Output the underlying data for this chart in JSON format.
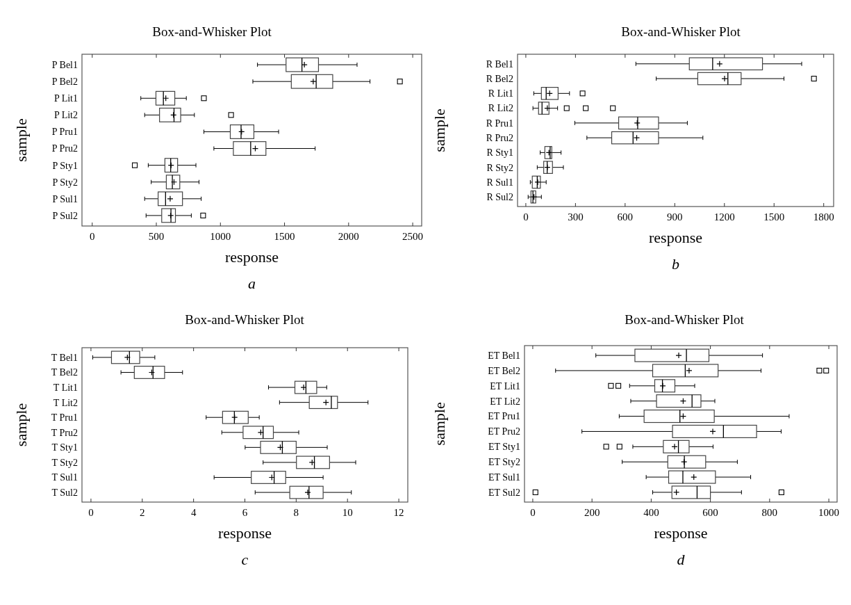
{
  "chart_data": [
    {
      "type": "box",
      "orientation": "horizontal",
      "title": "Box-and-Whisker Plot",
      "xlabel": "response",
      "ylabel": "sample",
      "annotations": [
        "a"
      ],
      "grid": false,
      "xlim": [
        -80,
        2570
      ],
      "xticks": [
        0,
        500,
        1000,
        1500,
        2000,
        2500
      ],
      "categories": [
        "P Bel1",
        "P Bel2",
        "P Lit1",
        "P Lit2",
        "P Pru1",
        "P Pru2",
        "P Sty1",
        "P Sty2",
        "P Sul1",
        "P Sul2"
      ],
      "boxes": [
        {
          "low": 1289,
          "q1": 1512,
          "median": 1636,
          "q3": 1765,
          "high": 2066,
          "mean": 1655
        },
        {
          "low": 1253,
          "q1": 1553,
          "median": 1747,
          "q3": 1876,
          "high": 2167,
          "mean": 1724,
          "outliers": [
            2400
          ]
        },
        {
          "low": 379,
          "q1": 497,
          "median": 555,
          "q3": 644,
          "high": 734,
          "mean": 574,
          "outliers": [
            871
          ]
        },
        {
          "low": 409,
          "q1": 525,
          "median": 638,
          "q3": 690,
          "high": 797,
          "mean": 634,
          "outliers": [
            1083
          ]
        },
        {
          "low": 871,
          "q1": 1077,
          "median": 1161,
          "q3": 1261,
          "high": 1454,
          "mean": 1165
        },
        {
          "low": 949,
          "q1": 1101,
          "median": 1236,
          "q3": 1355,
          "high": 1739,
          "mean": 1272
        },
        {
          "low": 437,
          "q1": 567,
          "median": 612,
          "q3": 666,
          "high": 809,
          "mean": 615,
          "outliers": [
            332
          ]
        },
        {
          "low": 460,
          "q1": 578,
          "median": 625,
          "q3": 683,
          "high": 833,
          "mean": 638
        },
        {
          "low": 409,
          "q1": 514,
          "median": 572,
          "q3": 704,
          "high": 850,
          "mean": 608
        },
        {
          "low": 420,
          "q1": 542,
          "median": 614,
          "q3": 649,
          "high": 773,
          "mean": 612,
          "outliers": [
            865
          ]
        }
      ]
    },
    {
      "type": "box",
      "orientation": "horizontal",
      "title": "Box-and-Whisker Plot",
      "xlabel": "response",
      "ylabel": "sample",
      "annotations": [
        "b"
      ],
      "grid": false,
      "xlim": [
        -50,
        1860
      ],
      "xticks": [
        0,
        300,
        600,
        900,
        1200,
        1500,
        1800
      ],
      "categories": [
        "R Bel1",
        "R Bel2",
        "R Lit1",
        "R Lit2",
        "R Pru1",
        "R Pru2",
        "R Sty1",
        "R Sty2",
        "R Sul1",
        "R Sul2"
      ],
      "boxes": [
        {
          "low": 665,
          "q1": 988,
          "median": 1129,
          "q3": 1430,
          "high": 1667,
          "mean": 1171
        },
        {
          "low": 788,
          "q1": 1039,
          "median": 1221,
          "q3": 1301,
          "high": 1560,
          "mean": 1201,
          "outliers": [
            1741
          ]
        },
        {
          "low": 48,
          "q1": 94,
          "median": 123,
          "q3": 195,
          "high": 264,
          "mean": 144,
          "outliers": [
            343
          ]
        },
        {
          "low": 43,
          "q1": 77,
          "median": 98,
          "q3": 140,
          "high": 192,
          "mean": 130,
          "outliers": [
            247,
            362,
            526
          ]
        },
        {
          "low": 296,
          "q1": 561,
          "median": 676,
          "q3": 802,
          "high": 976,
          "mean": 673
        },
        {
          "low": 369,
          "q1": 519,
          "median": 648,
          "q3": 802,
          "high": 1070,
          "mean": 670
        },
        {
          "low": 87,
          "q1": 115,
          "median": 147,
          "q3": 157,
          "high": 213,
          "mean": 140
        },
        {
          "low": 69,
          "q1": 108,
          "median": 129,
          "q3": 161,
          "high": 227,
          "mean": 130
        },
        {
          "low": 27,
          "q1": 39,
          "median": 69,
          "q3": 88,
          "high": 123,
          "mean": 72
        },
        {
          "low": 14,
          "q1": 31,
          "median": 43,
          "q3": 60,
          "high": 94,
          "mean": 49
        }
      ]
    },
    {
      "type": "box",
      "orientation": "horizontal",
      "title": "Box-and-Whisker Plot",
      "xlabel": "response",
      "ylabel": "sample",
      "annotations": [
        "c"
      ],
      "grid": false,
      "xlim": [
        -0.35,
        12.35
      ],
      "xticks": [
        0,
        2,
        4,
        6,
        8,
        10,
        12
      ],
      "categories": [
        "T Bel1",
        "T Bel2",
        "T Lit1",
        "T Lit2",
        "T Pru1",
        "T Pru2",
        "T Sty1",
        "T Sty2",
        "T Sul1",
        "T Sul2"
      ],
      "boxes": [
        {
          "low": 0.07,
          "q1": 0.8,
          "median": 1.5,
          "q3": 1.9,
          "high": 2.49,
          "mean": 1.42
        },
        {
          "low": 1.17,
          "q1": 1.69,
          "median": 2.42,
          "q3": 2.87,
          "high": 3.57,
          "mean": 2.37
        },
        {
          "low": 6.92,
          "q1": 7.95,
          "median": 8.38,
          "q3": 8.8,
          "high": 9.19,
          "mean": 8.29
        },
        {
          "low": 7.35,
          "q1": 8.51,
          "median": 9.37,
          "q3": 9.61,
          "high": 10.8,
          "mean": 9.16
        },
        {
          "low": 4.49,
          "q1": 5.13,
          "median": 5.59,
          "q3": 6.13,
          "high": 6.56,
          "mean": 5.6
        },
        {
          "low": 5.1,
          "q1": 5.93,
          "median": 6.71,
          "q3": 7.11,
          "high": 8.1,
          "mean": 6.62
        },
        {
          "low": 6.01,
          "q1": 6.61,
          "median": 7.46,
          "q3": 8.0,
          "high": 9.21,
          "mean": 7.38
        },
        {
          "low": 6.71,
          "q1": 8.01,
          "median": 8.71,
          "q3": 9.3,
          "high": 10.32,
          "mean": 8.62
        },
        {
          "low": 4.8,
          "q1": 6.25,
          "median": 7.14,
          "q3": 7.59,
          "high": 9.05,
          "mean": 7.05
        },
        {
          "low": 6.4,
          "q1": 7.75,
          "median": 8.5,
          "q3": 9.05,
          "high": 10.15,
          "mean": 8.45
        }
      ]
    },
    {
      "type": "box",
      "orientation": "horizontal",
      "title": "Box-and-Whisker Plot",
      "xlabel": "response",
      "ylabel": "sample",
      "annotations": [
        "d"
      ],
      "grid": false,
      "xlim": [
        -28,
        1028
      ],
      "xticks": [
        0,
        200,
        400,
        600,
        800,
        1000
      ],
      "categories": [
        "ET Bel1",
        "ET Bel2",
        "ET Lit1",
        "ET Lit2",
        "ET Pru1",
        "ET Pru2",
        "ET Sty1",
        "ET Sty2",
        "ET Sul1",
        "ET Sul2"
      ],
      "boxes": [
        {
          "low": 213,
          "q1": 345,
          "median": 519,
          "q3": 595,
          "high": 776,
          "mean": 493
        },
        {
          "low": 77,
          "q1": 405,
          "median": 515,
          "q3": 626,
          "high": 771,
          "mean": 528,
          "outliers": [
            968,
            991
          ]
        },
        {
          "low": 327,
          "q1": 412,
          "median": 438,
          "q3": 480,
          "high": 547,
          "mean": 439,
          "outliers": [
            264,
            289
          ]
        },
        {
          "low": 331,
          "q1": 418,
          "median": 538,
          "q3": 568,
          "high": 615,
          "mean": 508
        },
        {
          "low": 292,
          "q1": 376,
          "median": 497,
          "q3": 613,
          "high": 866,
          "mean": 508
        },
        {
          "low": 166,
          "q1": 472,
          "median": 644,
          "q3": 756,
          "high": 839,
          "mean": 608
        },
        {
          "low": 338,
          "q1": 441,
          "median": 492,
          "q3": 528,
          "high": 609,
          "mean": 479,
          "outliers": [
            248,
            293
          ]
        },
        {
          "low": 302,
          "q1": 456,
          "median": 512,
          "q3": 584,
          "high": 691,
          "mean": 511
        },
        {
          "low": 383,
          "q1": 459,
          "median": 507,
          "q3": 617,
          "high": 736,
          "mean": 544
        },
        {
          "low": 405,
          "q1": 470,
          "median": 555,
          "q3": 600,
          "high": 705,
          "mean": 485,
          "outliers": [
            9,
            840
          ]
        }
      ]
    }
  ]
}
